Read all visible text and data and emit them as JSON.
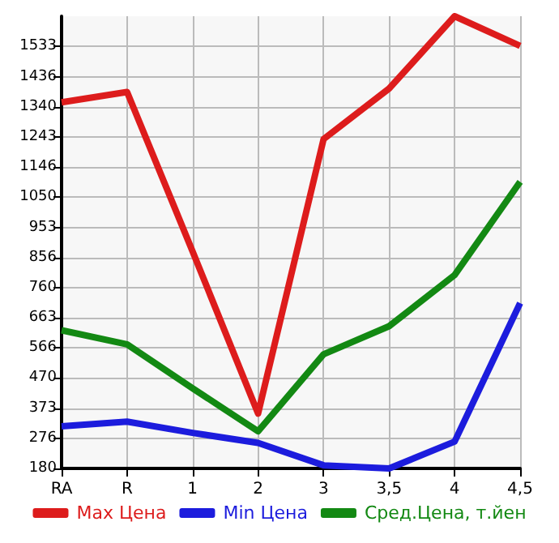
{
  "chart_data": {
    "type": "line",
    "categories": [
      "RA",
      "R",
      "1",
      "2",
      "3",
      "3,5",
      "4",
      "4,5"
    ],
    "series": [
      {
        "name": "Max Цена",
        "color": "#dd1c1c",
        "values": [
          1354,
          1387,
          876,
          356,
          1236,
          1398,
          1630,
          1535
        ]
      },
      {
        "name": "Min Цена",
        "color": "#1c1cdd",
        "values": [
          315,
          330,
          294,
          262,
          190,
          180,
          266,
          710
        ]
      },
      {
        "name": "Сред.Цена, т.йен",
        "color": "#138913",
        "values": [
          623,
          578,
          437,
          299,
          546,
          636,
          800,
          1099
        ]
      }
    ],
    "ylim": [
      180,
      1630
    ],
    "yticks": [
      180,
      276,
      373,
      470,
      566,
      663,
      760,
      856,
      953,
      1050,
      1146,
      1243,
      1340,
      1436,
      1533
    ],
    "grid": true,
    "legend": "bottom",
    "marker": "none",
    "line_style": "solid"
  }
}
